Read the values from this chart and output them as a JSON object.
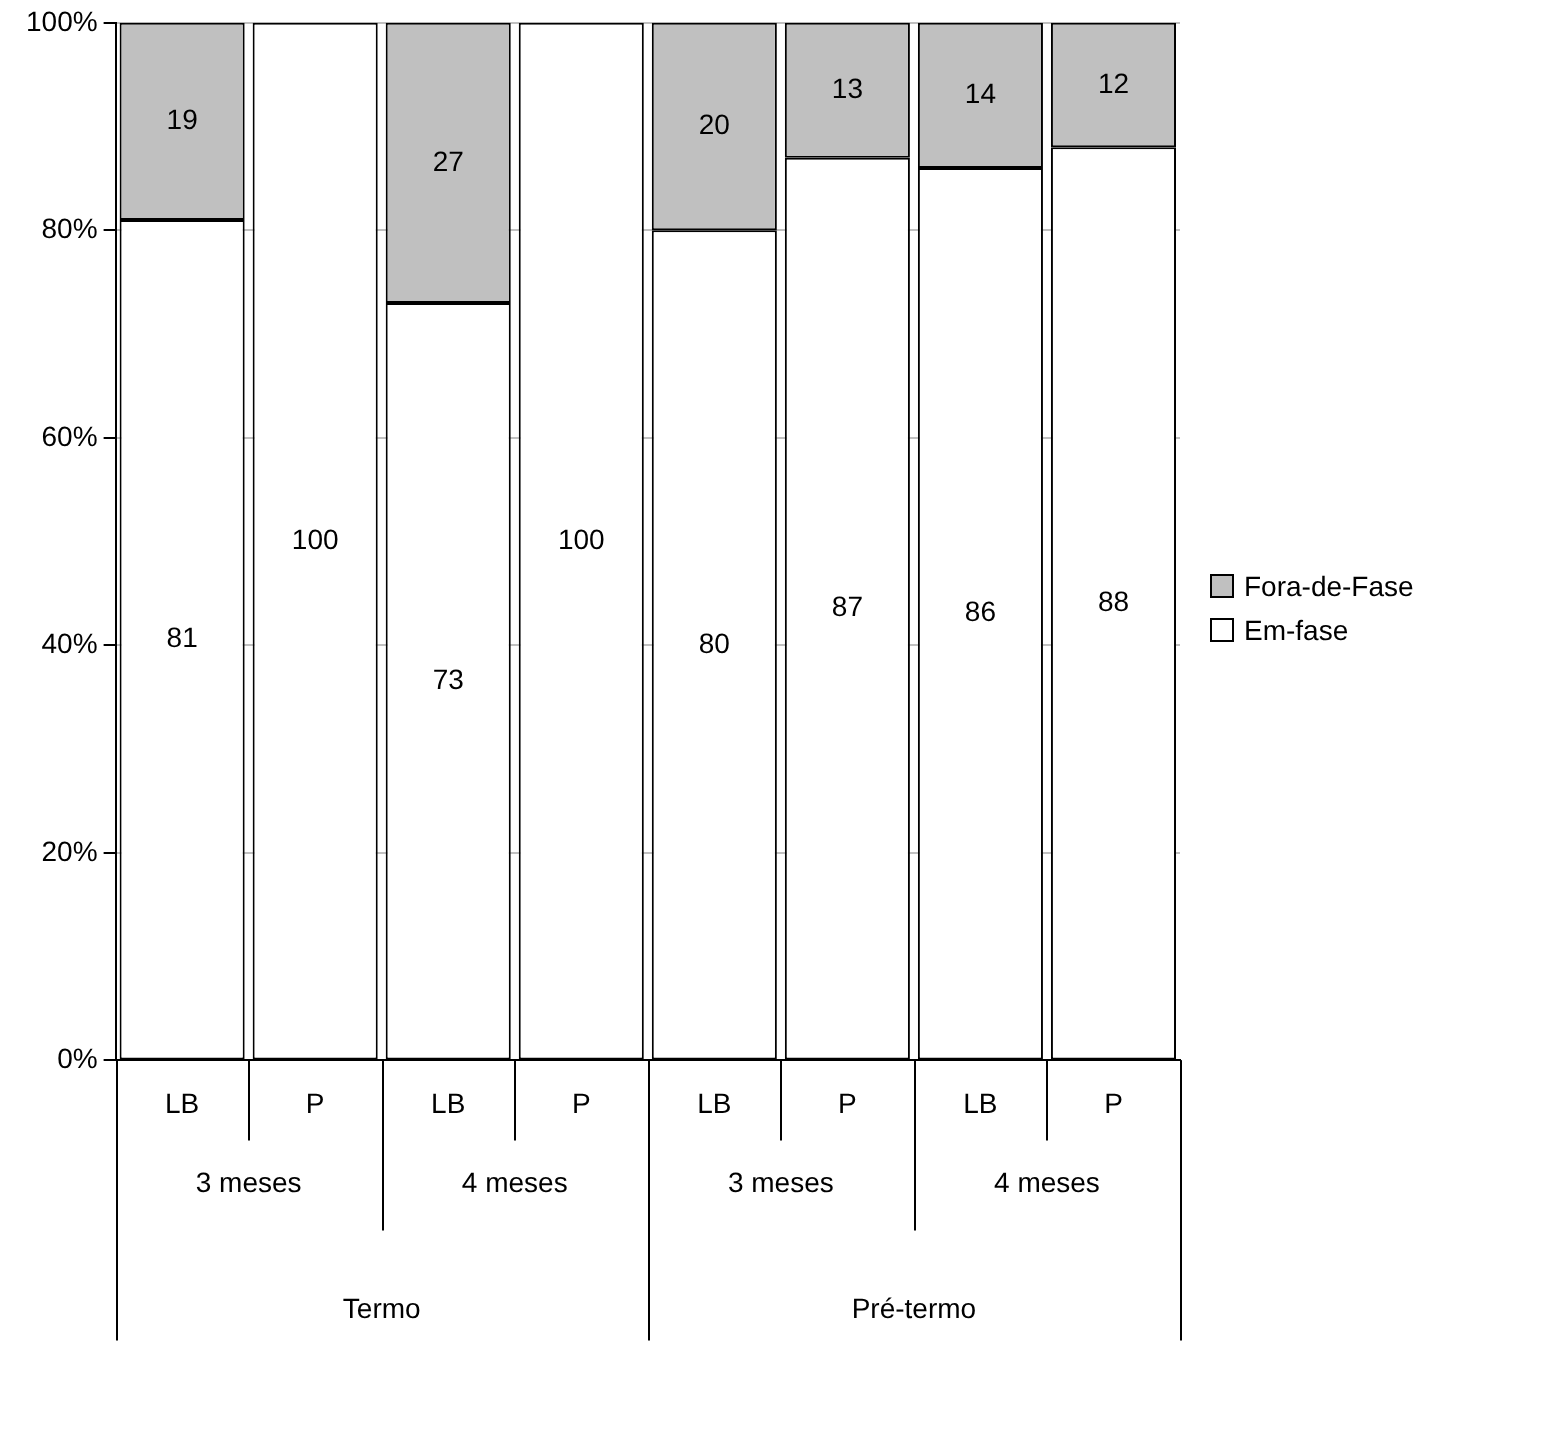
{
  "chart_data": {
    "type": "bar",
    "stacked": true,
    "categories": [
      "LB",
      "P",
      "LB",
      "P",
      "LB",
      "P",
      "LB",
      "P"
    ],
    "series": [
      {
        "name": "Em-fase",
        "color": "#ffffff",
        "values": [
          81,
          100,
          73,
          100,
          80,
          87,
          86,
          88
        ],
        "value_labels": [
          "81",
          "100",
          "73",
          "100",
          "80",
          "87",
          "86",
          "88"
        ]
      },
      {
        "name": "Fora-de-Fase",
        "color": "#c0c0c0",
        "values": [
          19,
          0,
          27,
          0,
          20,
          13,
          14,
          12
        ],
        "value_labels": [
          "19",
          null,
          "27",
          null,
          "20",
          "13",
          "14",
          "12"
        ]
      }
    ],
    "ylim": [
      0,
      100
    ],
    "yticks": [
      {
        "value": 0,
        "label": "0%"
      },
      {
        "value": 20,
        "label": "20%"
      },
      {
        "value": 40,
        "label": "40%"
      },
      {
        "value": 60,
        "label": "60%"
      },
      {
        "value": 80,
        "label": "80%"
      },
      {
        "value": 100,
        "label": "100%"
      }
    ],
    "grid": "y",
    "legend": "right",
    "annotations": [
      "3 meses",
      "4 meses",
      "3 meses",
      "4 meses",
      "Termo",
      "Pré-termo"
    ]
  }
}
